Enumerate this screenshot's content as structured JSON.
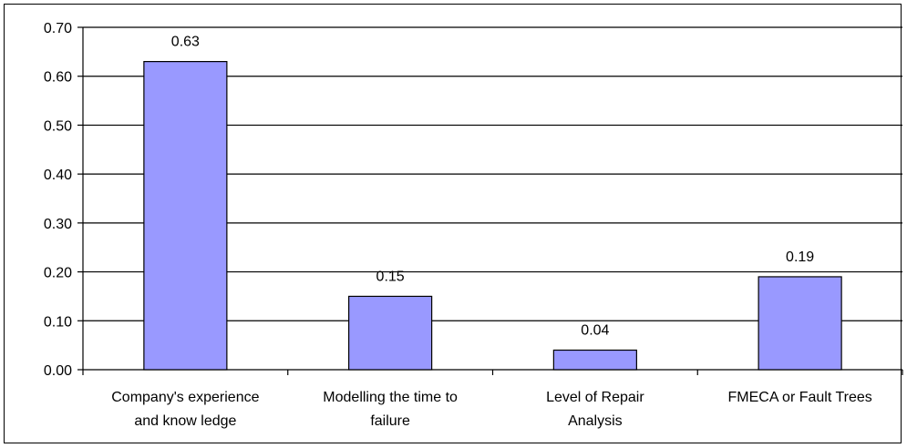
{
  "chart_data": {
    "type": "bar",
    "categories": [
      [
        "Company's experience",
        "and know ledge"
      ],
      [
        "Modelling the time to",
        "failure"
      ],
      [
        "Level of Repair",
        "Analysis"
      ],
      [
        "FMECA or Fault Trees"
      ]
    ],
    "values": [
      0.63,
      0.15,
      0.04,
      0.19
    ],
    "data_labels": [
      "0.63",
      "0.15",
      "0.04",
      "0.19"
    ],
    "ylim": [
      0,
      0.7
    ],
    "yticks": [
      "0.00",
      "0.10",
      "0.20",
      "0.30",
      "0.40",
      "0.50",
      "0.60",
      "0.70"
    ],
    "grid": true,
    "bar_color": "#9999ff",
    "bar_stroke": "#000000"
  }
}
